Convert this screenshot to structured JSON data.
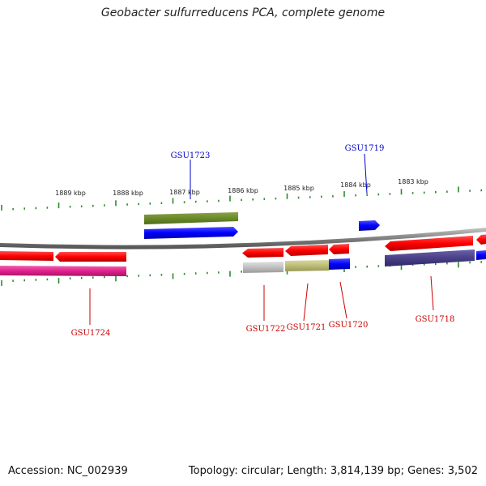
{
  "title": "Geobacter sulfurreducens PCA, complete genome",
  "footer": {
    "accession": "Accession: NC_002939",
    "summary": "Topology: circular; Length: 3,814,139 bp; Genes: 3,502"
  },
  "colors": {
    "forward_label": "#0000cc",
    "reverse_label": "#cc0000",
    "tick": "#2a8a2a",
    "backbone": "#808080"
  },
  "scale_ticks": [
    "1889 kbp",
    "1888 kbp",
    "1887 kbp",
    "1886 kbp",
    "1885 kbp",
    "1884 kbp",
    "1883 kbp"
  ],
  "gene_labels": {
    "top": [
      "GSU1723",
      "GSU1719"
    ],
    "bottom": [
      "GSU1724",
      "GSU1722",
      "GSU1721",
      "GSU1720",
      "GSU1718"
    ]
  }
}
